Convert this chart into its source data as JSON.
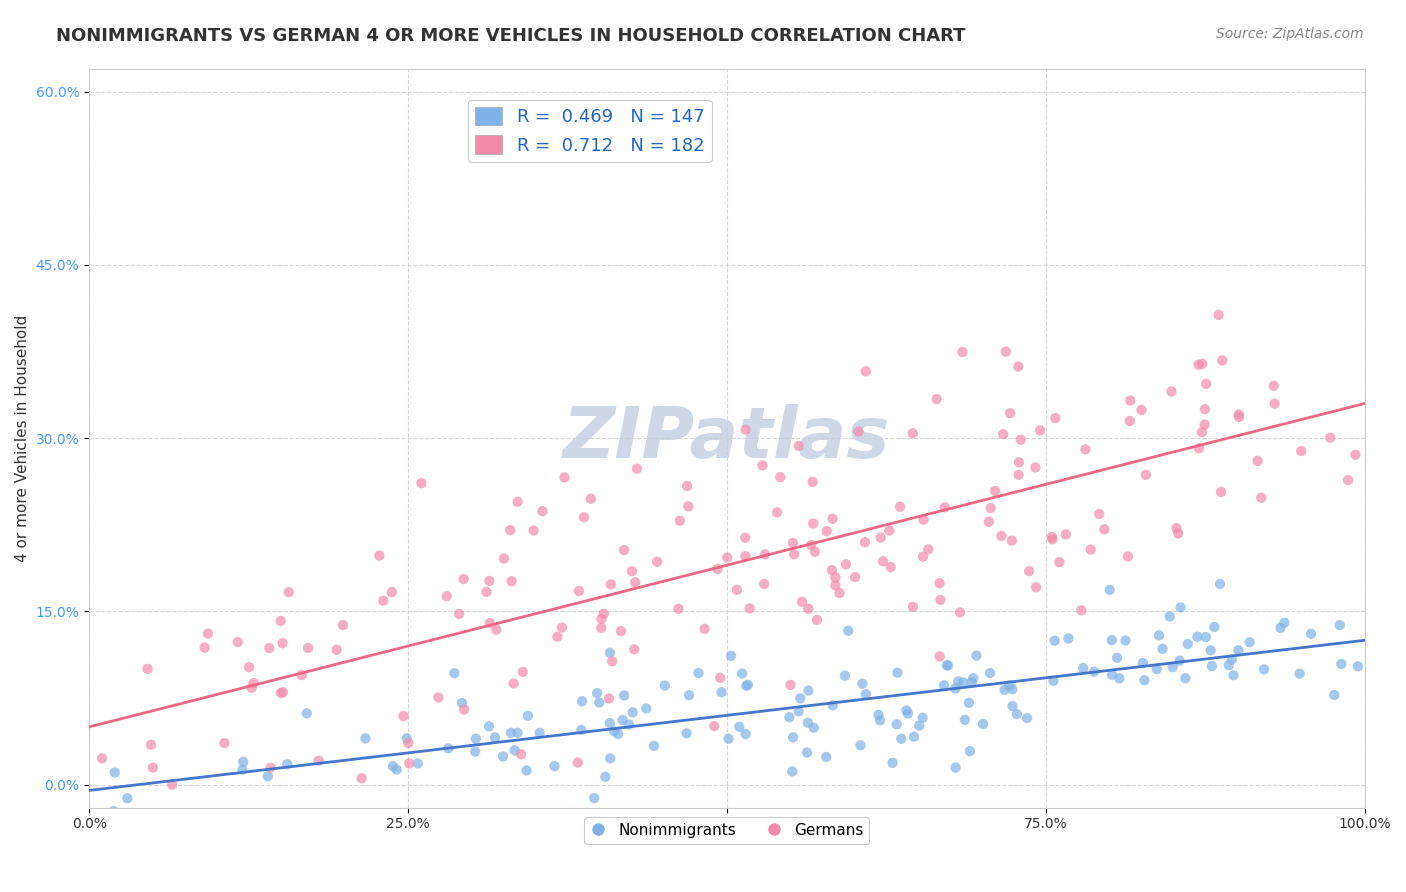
{
  "title": "NONIMMIGRANTS VS GERMAN 4 OR MORE VEHICLES IN HOUSEHOLD CORRELATION CHART",
  "source": "Source: ZipAtlas.com",
  "ylabel": "4 or more Vehicles in Household",
  "xlabel": "",
  "watermark": "ZIPatlas",
  "legend_entries": [
    {
      "label": "R =  0.469   N = 147",
      "color": "#aac4e8"
    },
    {
      "label": "R =  0.712   N = 182",
      "color": "#f4a7b9"
    }
  ],
  "nonimmigrant_legend": "Nonimmigrants",
  "german_legend": "Germans",
  "blue_R": 0.469,
  "blue_N": 147,
  "pink_R": 0.712,
  "pink_N": 182,
  "blue_color": "#7fb3e8",
  "pink_color": "#f48aaa",
  "blue_line_color": "#4477cc",
  "pink_line_color": "#ee6688",
  "title_fontsize": 13,
  "source_fontsize": 10,
  "axis_label_fontsize": 11,
  "tick_fontsize": 10,
  "watermark_color": "#d0d8e8",
  "watermark_fontsize": 52,
  "background_color": "#ffffff",
  "grid_color": "#cccccc",
  "xlim": [
    0,
    1
  ],
  "ylim": [
    -0.02,
    0.62
  ],
  "blue_intercept": -0.005,
  "blue_slope": 0.13,
  "pink_intercept": 0.05,
  "pink_slope": 0.28
}
